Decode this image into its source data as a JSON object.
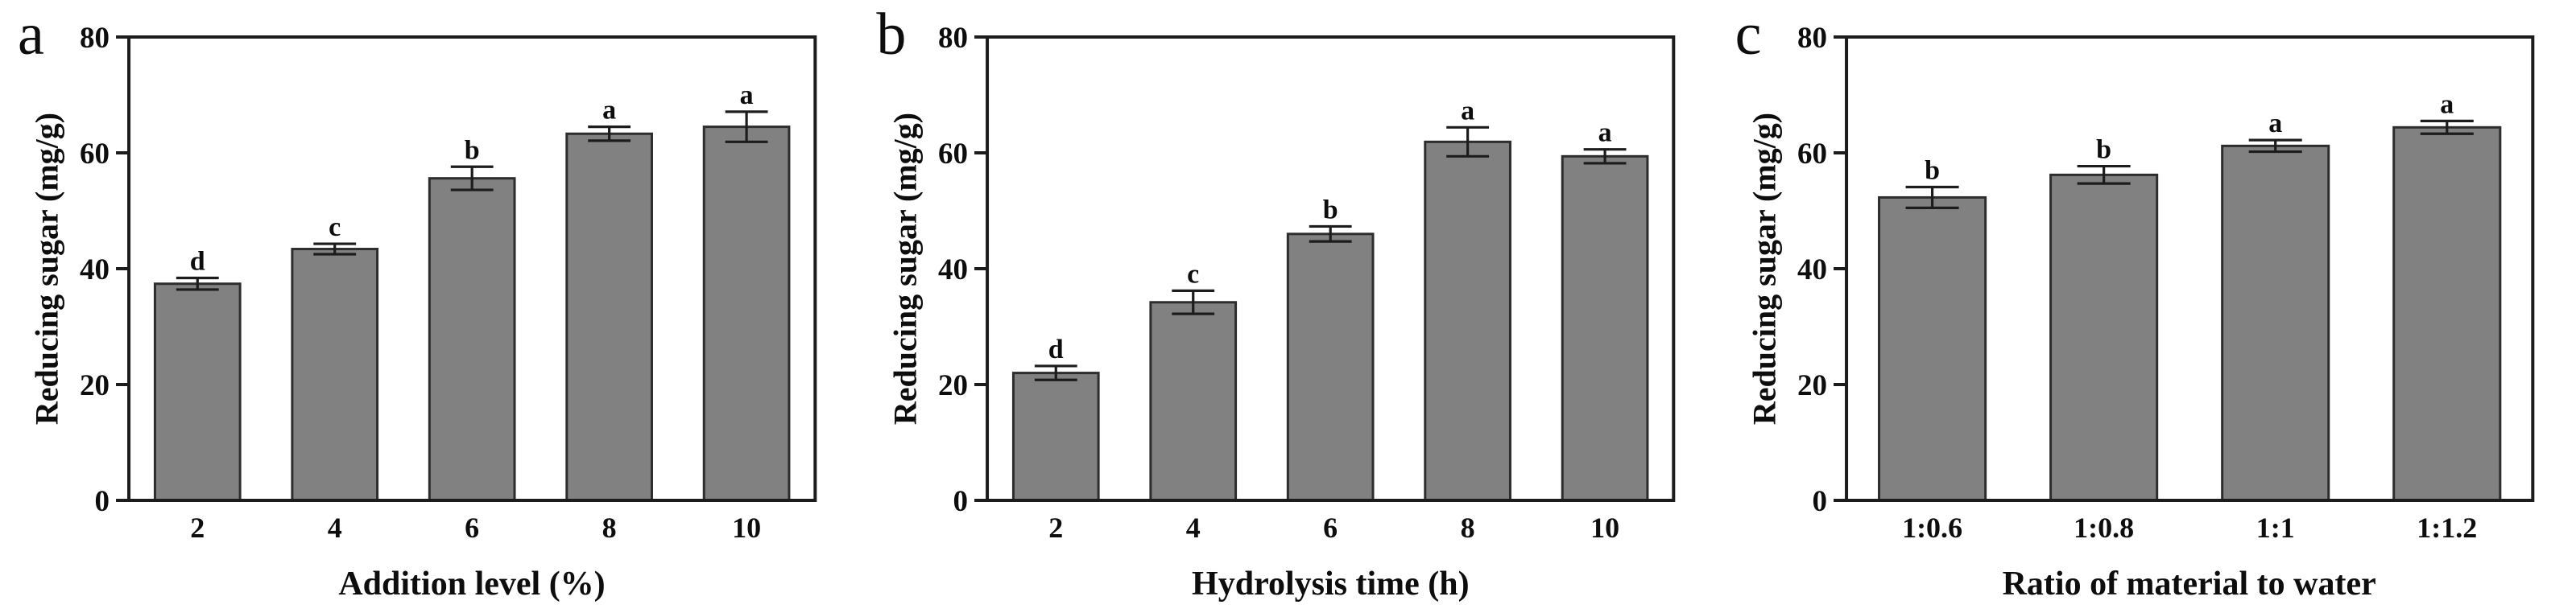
{
  "figure": {
    "background": "#ffffff",
    "bar_fill": "#818181",
    "bar_edge": "#2d2d2d",
    "axis_color": "#1c1c1c",
    "text_color": "#0d0d0d"
  },
  "chart_data": [
    {
      "type": "bar",
      "panel_label": "a",
      "title": "",
      "xlabel": "Addition level (%)",
      "ylabel": "Reducing sugar (mg/g)",
      "ylim": [
        0,
        80
      ],
      "yticks": [
        0,
        20,
        40,
        60,
        80
      ],
      "grid": false,
      "legend": "none",
      "categories": [
        "2",
        "4",
        "6",
        "8",
        "10"
      ],
      "values": [
        37.4,
        43.4,
        55.6,
        63.3,
        64.5
      ],
      "errors": [
        1.0,
        0.9,
        2.0,
        1.2,
        2.6
      ],
      "sig_letters": [
        "d",
        "c",
        "b",
        "a",
        "a"
      ]
    },
    {
      "type": "bar",
      "panel_label": "b",
      "title": "",
      "xlabel": "Hydrolysis time (h)",
      "ylabel": "Reducing sugar (mg/g)",
      "ylim": [
        0,
        80
      ],
      "yticks": [
        0,
        20,
        40,
        60,
        80
      ],
      "grid": false,
      "legend": "none",
      "categories": [
        "2",
        "4",
        "6",
        "8",
        "10"
      ],
      "values": [
        22.0,
        34.2,
        46.0,
        61.9,
        59.4
      ],
      "errors": [
        1.2,
        2.0,
        1.3,
        2.5,
        1.2
      ],
      "sig_letters": [
        "d",
        "c",
        "b",
        "a",
        "a"
      ]
    },
    {
      "type": "bar",
      "panel_label": "c",
      "title": "",
      "xlabel": "Ratio of material to water",
      "ylabel": "Reducing sugar (mg/g)",
      "ylim": [
        0,
        80
      ],
      "yticks": [
        0,
        20,
        40,
        60,
        80
      ],
      "grid": false,
      "legend": "none",
      "categories": [
        "1:0.6",
        "1:0.8",
        "1:1",
        "1:1.2"
      ],
      "values": [
        52.3,
        56.2,
        61.2,
        64.4
      ],
      "errors": [
        1.8,
        1.5,
        1.0,
        1.1
      ],
      "sig_letters": [
        "b",
        "b",
        "a",
        "a"
      ]
    }
  ]
}
